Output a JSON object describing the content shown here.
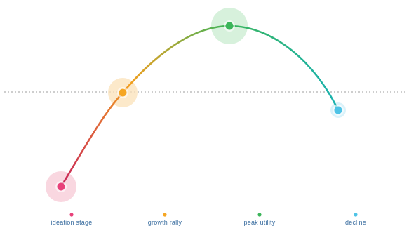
{
  "diagram": {
    "stages": [
      {
        "id": "s1",
        "label": "ideation stage",
        "marker_label": "",
        "color": "#e8417a",
        "halo": "#f7c9d6",
        "big_halo": true
      },
      {
        "id": "s2",
        "label": "growth rally",
        "marker_label": "",
        "color": "#f5a623",
        "halo": "#fbe2b8",
        "big_halo": true
      },
      {
        "id": "s3",
        "label": "peak utility",
        "marker_label": "",
        "color": "#3cb55a",
        "halo": "#c9ecd0",
        "big_halo": true
      },
      {
        "id": "s4",
        "label": "decline",
        "marker_label": "",
        "color": "#4ec3e6",
        "halo": "#cdeef8",
        "big_halo": false
      }
    ],
    "gradient_colors": [
      "#c8245a",
      "#f29f1f",
      "#3cb55a",
      "#19b2b0"
    ],
    "baseline_color": "#bdbdbd"
  }
}
